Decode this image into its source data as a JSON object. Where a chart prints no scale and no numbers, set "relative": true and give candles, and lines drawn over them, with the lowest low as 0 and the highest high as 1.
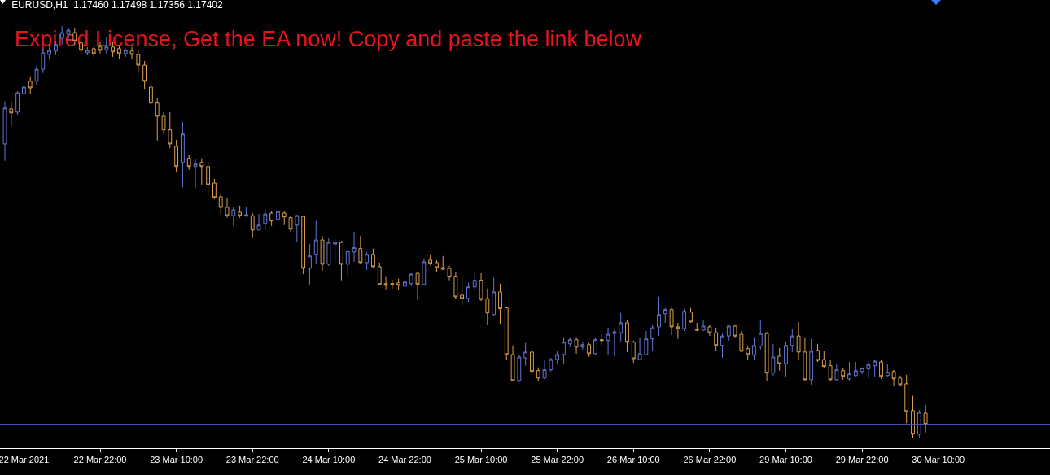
{
  "chart_data": {
    "type": "candlestick",
    "title": "EURUSD,H1  1.17460 1.17498 1.17356 1.17402",
    "relative": true,
    "annotations": [
      "Expired License, Get the EA now! Copy and paste the link below"
    ],
    "ohlc": [
      [
        0.714,
        0.817,
        0.673,
        0.801
      ],
      [
        0.799,
        0.817,
        0.757,
        0.789
      ],
      [
        0.791,
        0.842,
        0.783,
        0.838
      ],
      [
        0.836,
        0.862,
        0.832,
        0.852
      ],
      [
        0.866,
        0.876,
        0.836,
        0.85
      ],
      [
        0.866,
        0.905,
        0.856,
        0.895
      ],
      [
        0.895,
        0.945,
        0.886,
        0.935
      ],
      [
        0.931,
        0.955,
        0.921,
        0.941
      ],
      [
        0.939,
        0.964,
        0.929,
        0.955
      ],
      [
        0.97,
        1,
        0.955,
        0.984
      ],
      [
        0.98,
        0.996,
        0.964,
        0.99
      ],
      [
        0.984,
        0.994,
        0.955,
        0.964
      ],
      [
        0.959,
        0.968,
        0.933,
        0.941
      ],
      [
        0.935,
        0.949,
        0.929,
        0.941
      ],
      [
        0.945,
        0.953,
        0.925,
        0.933
      ],
      [
        0.949,
        0.961,
        0.933,
        0.941
      ],
      [
        0.941,
        0.974,
        0.933,
        0.949
      ],
      [
        0.949,
        0.961,
        0.925,
        0.937
      ],
      [
        0.945,
        0.953,
        0.921,
        0.933
      ],
      [
        0.933,
        0.945,
        0.925,
        0.941
      ],
      [
        0.939,
        0.949,
        0.921,
        0.931
      ],
      [
        0.931,
        0.941,
        0.886,
        0.905
      ],
      [
        0.905,
        0.915,
        0.846,
        0.866
      ],
      [
        0.852,
        0.866,
        0.807,
        0.813
      ],
      [
        0.813,
        0.826,
        0.722,
        0.781
      ],
      [
        0.781,
        0.791,
        0.738,
        0.748
      ],
      [
        0.748,
        0.791,
        0.704,
        0.714
      ],
      [
        0.708,
        0.724,
        0.645,
        0.659
      ],
      [
        0.669,
        0.767,
        0.609,
        0.738
      ],
      [
        0.679,
        0.688,
        0.651,
        0.659
      ],
      [
        0.659,
        0.677,
        0.606,
        0.665
      ],
      [
        0.669,
        0.679,
        0.615,
        0.659
      ],
      [
        0.659,
        0.669,
        0.59,
        0.615
      ],
      [
        0.619,
        0.629,
        0.58,
        0.584
      ],
      [
        0.586,
        0.594,
        0.544,
        0.56
      ],
      [
        0.56,
        0.584,
        0.535,
        0.54
      ],
      [
        0.54,
        0.56,
        0.515,
        0.554
      ],
      [
        0.548,
        0.564,
        0.535,
        0.54
      ],
      [
        0.54,
        0.56,
        0.537,
        0.542
      ],
      [
        0.54,
        0.546,
        0.487,
        0.505
      ],
      [
        0.505,
        0.544,
        0.505,
        0.517
      ],
      [
        0.521,
        0.556,
        0.505,
        0.544
      ],
      [
        0.546,
        0.55,
        0.515,
        0.527
      ],
      [
        0.531,
        0.554,
        0.525,
        0.55
      ],
      [
        0.546,
        0.55,
        0.517,
        0.537
      ],
      [
        0.535,
        0.54,
        0.501,
        0.507
      ],
      [
        0.517,
        0.542,
        0.475,
        0.54
      ],
      [
        0.538,
        0.54,
        0.398,
        0.412
      ],
      [
        0.412,
        0.471,
        0.373,
        0.442
      ],
      [
        0.446,
        0.527,
        0.422,
        0.481
      ],
      [
        0.481,
        0.491,
        0.406,
        0.422
      ],
      [
        0.422,
        0.485,
        0.418,
        0.475
      ],
      [
        0.471,
        0.487,
        0.428,
        0.475
      ],
      [
        0.475,
        0.479,
        0.383,
        0.422
      ],
      [
        0.422,
        0.458,
        0.396,
        0.454
      ],
      [
        0.452,
        0.501,
        0.428,
        0.462
      ],
      [
        0.46,
        0.491,
        0.422,
        0.426
      ],
      [
        0.426,
        0.452,
        0.408,
        0.446
      ],
      [
        0.446,
        0.46,
        0.414,
        0.416
      ],
      [
        0.416,
        0.426,
        0.371,
        0.373
      ],
      [
        0.375,
        0.393,
        0.361,
        0.371
      ],
      [
        0.375,
        0.385,
        0.363,
        0.373
      ],
      [
        0.377,
        0.387,
        0.359,
        0.371
      ],
      [
        0.369,
        0.383,
        0.367,
        0.379
      ],
      [
        0.375,
        0.4,
        0.369,
        0.398
      ],
      [
        0.4,
        0.402,
        0.335,
        0.373
      ],
      [
        0.373,
        0.436,
        0.371,
        0.428
      ],
      [
        0.432,
        0.446,
        0.42,
        0.424
      ],
      [
        0.426,
        0.432,
        0.404,
        0.414
      ],
      [
        0.414,
        0.442,
        0.408,
        0.41
      ],
      [
        0.412,
        0.418,
        0.383,
        0.391
      ],
      [
        0.393,
        0.404,
        0.339,
        0.343
      ],
      [
        0.347,
        0.394,
        0.321,
        0.339
      ],
      [
        0.339,
        0.377,
        0.331,
        0.367
      ],
      [
        0.367,
        0.402,
        0.359,
        0.383
      ],
      [
        0.383,
        0.4,
        0.333,
        0.337
      ],
      [
        0.339,
        0.363,
        0.274,
        0.304
      ],
      [
        0.3,
        0.389,
        0.298,
        0.355
      ],
      [
        0.355,
        0.375,
        0.278,
        0.314
      ],
      [
        0.316,
        0.318,
        0.189,
        0.203
      ],
      [
        0.203,
        0.225,
        0.138,
        0.14
      ],
      [
        0.14,
        0.203,
        0.136,
        0.197
      ],
      [
        0.195,
        0.231,
        0.176,
        0.209
      ],
      [
        0.209,
        0.219,
        0.152,
        0.162
      ],
      [
        0.164,
        0.172,
        0.138,
        0.146
      ],
      [
        0.146,
        0.189,
        0.142,
        0.166
      ],
      [
        0.166,
        0.195,
        0.162,
        0.191
      ],
      [
        0.191,
        0.211,
        0.181,
        0.203
      ],
      [
        0.203,
        0.245,
        0.181,
        0.233
      ],
      [
        0.229,
        0.245,
        0.221,
        0.239
      ],
      [
        0.239,
        0.245,
        0.205,
        0.221
      ],
      [
        0.221,
        0.233,
        0.215,
        0.227
      ],
      [
        0.227,
        0.231,
        0.197,
        0.205
      ],
      [
        0.205,
        0.243,
        0.203,
        0.239
      ],
      [
        0.239,
        0.252,
        0.225,
        0.237
      ],
      [
        0.237,
        0.268,
        0.203,
        0.252
      ],
      [
        0.254,
        0.264,
        0.199,
        0.258
      ],
      [
        0.256,
        0.304,
        0.235,
        0.28
      ],
      [
        0.28,
        0.288,
        0.209,
        0.233
      ],
      [
        0.233,
        0.237,
        0.183,
        0.193
      ],
      [
        0.191,
        0.245,
        0.189,
        0.205
      ],
      [
        0.203,
        0.26,
        0.201,
        0.241
      ],
      [
        0.241,
        0.274,
        0.211,
        0.268
      ],
      [
        0.27,
        0.343,
        0.248,
        0.3
      ],
      [
        0.302,
        0.316,
        0.28,
        0.312
      ],
      [
        0.312,
        0.316,
        0.25,
        0.27
      ],
      [
        0.27,
        0.28,
        0.241,
        0.266
      ],
      [
        0.266,
        0.314,
        0.26,
        0.308
      ],
      [
        0.306,
        0.316,
        0.28,
        0.282
      ],
      [
        0.264,
        0.28,
        0.26,
        0.262
      ],
      [
        0.262,
        0.288,
        0.26,
        0.272
      ],
      [
        0.27,
        0.276,
        0.248,
        0.256
      ],
      [
        0.256,
        0.268,
        0.211,
        0.225
      ],
      [
        0.225,
        0.254,
        0.195,
        0.248
      ],
      [
        0.248,
        0.276,
        0.237,
        0.272
      ],
      [
        0.272,
        0.276,
        0.245,
        0.248
      ],
      [
        0.252,
        0.26,
        0.209,
        0.211
      ],
      [
        0.217,
        0.223,
        0.189,
        0.203
      ],
      [
        0.201,
        0.245,
        0.189,
        0.225
      ],
      [
        0.223,
        0.288,
        0.215,
        0.254
      ],
      [
        0.254,
        0.258,
        0.14,
        0.158
      ],
      [
        0.158,
        0.229,
        0.152,
        0.197
      ],
      [
        0.199,
        0.219,
        0.164,
        0.181
      ],
      [
        0.181,
        0.233,
        0.15,
        0.225
      ],
      [
        0.225,
        0.264,
        0.209,
        0.248
      ],
      [
        0.248,
        0.282,
        0.191,
        0.209
      ],
      [
        0.209,
        0.245,
        0.14,
        0.142
      ],
      [
        0.142,
        0.241,
        0.13,
        0.211
      ],
      [
        0.213,
        0.229,
        0.185,
        0.189
      ],
      [
        0.191,
        0.211,
        0.172,
        0.174
      ],
      [
        0.176,
        0.189,
        0.14,
        0.142
      ],
      [
        0.142,
        0.181,
        0.14,
        0.166
      ],
      [
        0.164,
        0.17,
        0.142,
        0.15
      ],
      [
        0.144,
        0.185,
        0.14,
        0.156
      ],
      [
        0.152,
        0.185,
        0.15,
        0.164
      ],
      [
        0.162,
        0.172,
        0.156,
        0.17
      ],
      [
        0.168,
        0.185,
        0.146,
        0.179
      ],
      [
        0.176,
        0.191,
        0.15,
        0.187
      ],
      [
        0.185,
        0.189,
        0.144,
        0.15
      ],
      [
        0.152,
        0.179,
        0.15,
        0.16
      ],
      [
        0.162,
        0.166,
        0.126,
        0.144
      ],
      [
        0.146,
        0.152,
        0.126,
        0.13
      ],
      [
        0.132,
        0.154,
        0.037,
        0.065
      ],
      [
        0.067,
        0.103,
        0,
        0.01
      ],
      [
        0.01,
        0.069,
        0.002,
        0.063
      ],
      [
        0.061,
        0.081,
        0.014,
        0.034
      ],
      null,
      null
    ],
    "colors": [
      "#6478d2",
      "#dca050",
      "#6478d2",
      "#6478d2",
      "#dca050",
      "#6478d2",
      "#6478d2",
      "#6478d2",
      "#6478d2",
      "#6478d2",
      "#6478d2",
      "#dca050",
      "#dca050",
      "#6478d2",
      "#dca050",
      "#dca050",
      "#6478d2",
      "#dca050",
      "#dca050",
      "#6478d2",
      "#dca050",
      "#dca050",
      "#dca050",
      "#dca050",
      "#dca050",
      "#dca050",
      "#dca050",
      "#dca050",
      "#6478d2",
      "#dca050",
      "#6478d2",
      "#dca050",
      "#dca050",
      "#dca050",
      "#dca050",
      "#dca050",
      "#6478d2",
      "#dca050",
      "#6478d2",
      "#dca050",
      "#6478d2",
      "#6478d2",
      "#dca050",
      "#6478d2",
      "#dca050",
      "#dca050",
      "#6478d2",
      "#dca050",
      "#6478d2",
      "#6478d2",
      "#dca050",
      "#6478d2",
      "#6478d2",
      "#dca050",
      "#6478d2",
      "#6478d2",
      "#dca050",
      "#6478d2",
      "#dca050",
      "#dca050",
      "#dca050",
      "#dca050",
      "#dca050",
      "#6478d2",
      "#6478d2",
      "#dca050",
      "#6478d2",
      "#dca050",
      "#dca050",
      "#dca050",
      "#dca050",
      "#dca050",
      "#dca050",
      "#6478d2",
      "#6478d2",
      "#dca050",
      "#dca050",
      "#6478d2",
      "#dca050",
      "#dca050",
      "#dca050",
      "#6478d2",
      "#6478d2",
      "#dca050",
      "#dca050",
      "#6478d2",
      "#6478d2",
      "#6478d2",
      "#6478d2",
      "#6478d2",
      "#dca050",
      "#6478d2",
      "#dca050",
      "#6478d2",
      "#dca050",
      "#6478d2",
      "#6478d2",
      "#6478d2",
      "#dca050",
      "#dca050",
      "#6478d2",
      "#6478d2",
      "#6478d2",
      "#6478d2",
      "#6478d2",
      "#dca050",
      "#dca050",
      "#6478d2",
      "#dca050",
      "#dca050",
      "#6478d2",
      "#dca050",
      "#dca050",
      "#6478d2",
      "#6478d2",
      "#dca050",
      "#dca050",
      "#dca050",
      "#6478d2",
      "#6478d2",
      "#dca050",
      "#6478d2",
      "#dca050",
      "#6478d2",
      "#6478d2",
      "#dca050",
      "#dca050",
      "#6478d2",
      "#dca050",
      "#dca050",
      "#dca050",
      "#6478d2",
      "#dca050",
      "#6478d2",
      "#6478d2",
      "#6478d2",
      "#6478d2",
      "#6478d2",
      "#dca050",
      "#6478d2",
      "#dca050",
      "#dca050",
      "#dca050",
      "#dca050",
      "#6478d2",
      "#dca050",
      null,
      null
    ],
    "categories": [
      null,
      null,
      null,
      "22 Mar 2021",
      null,
      null,
      null,
      null,
      null,
      null,
      null,
      null,
      null,
      null,
      null,
      "22 Mar 22:00",
      null,
      null,
      null,
      null,
      null,
      null,
      null,
      null,
      null,
      null,
      null,
      "23 Mar 10:00",
      null,
      null,
      null,
      null,
      null,
      null,
      null,
      null,
      null,
      null,
      null,
      "23 Mar 22:00",
      null,
      null,
      null,
      null,
      null,
      null,
      null,
      null,
      null,
      null,
      null,
      "24 Mar 10:00",
      null,
      null,
      null,
      null,
      null,
      null,
      null,
      null,
      null,
      null,
      null,
      "24 Mar 22:00",
      null,
      null,
      null,
      null,
      null,
      null,
      null,
      null,
      null,
      null,
      null,
      "25 Mar 10:00",
      null,
      null,
      null,
      null,
      null,
      null,
      null,
      null,
      null,
      null,
      null,
      "25 Mar 22:00",
      null,
      null,
      null,
      null,
      null,
      null,
      null,
      null,
      null,
      null,
      null,
      "26 Mar 10:00",
      null,
      null,
      null,
      null,
      null,
      null,
      null,
      null,
      null,
      null,
      null,
      "26 Mar 22:00",
      null,
      null,
      null,
      null,
      null,
      null,
      null,
      null,
      null,
      null,
      null,
      "29 Mar 10:00",
      null,
      null,
      null,
      null,
      null,
      null,
      null,
      null,
      null,
      null,
      null,
      "29 Mar 22:00",
      null,
      null,
      null,
      null,
      null,
      null,
      null,
      null,
      null,
      null,
      null,
      "30 Mar 10:00"
    ],
    "ref_lines": [
      {
        "axis": "y",
        "value": 0.034,
        "color": "#4d5bb8"
      }
    ]
  }
}
